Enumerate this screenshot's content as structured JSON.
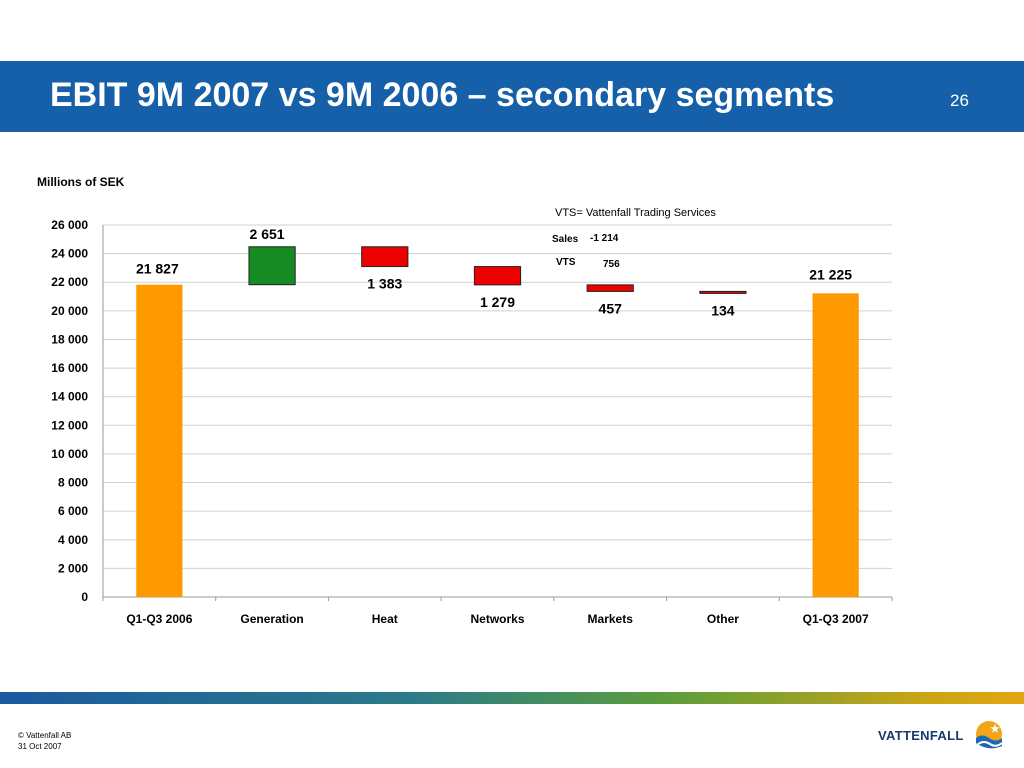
{
  "slide": {
    "title": "EBIT 9M 2007 vs 9M 2006 – secondary segments",
    "page_number": "26",
    "unit_label": "Millions of SEK",
    "copyright": "© Vattenfall AB",
    "date": "31 Oct 2007",
    "logo_text": "VATTENFALL"
  },
  "chart_data": {
    "type": "bar",
    "subtype": "waterfall",
    "categories": [
      "Q1-Q3 2006",
      "Generation",
      "Heat",
      "Networks",
      "Markets",
      "Other",
      "Q1-Q3 2007"
    ],
    "bars": [
      {
        "kind": "total",
        "start": 0,
        "end": 21827,
        "label": "21 827",
        "color": "#ff9900"
      },
      {
        "kind": "increase",
        "start": 21827,
        "end": 24478,
        "label": "2 651",
        "color": "#168a23"
      },
      {
        "kind": "decrease",
        "start": 24478,
        "end": 23095,
        "label": "1 383",
        "color": "#ee0000"
      },
      {
        "kind": "decrease",
        "start": 23095,
        "end": 21816,
        "label": "1 279",
        "color": "#ee0000"
      },
      {
        "kind": "decrease",
        "start": 21816,
        "end": 21359,
        "label": "457",
        "color": "#ee0000"
      },
      {
        "kind": "decrease",
        "start": 21359,
        "end": 21225,
        "label": "134",
        "color": "#ee0000"
      },
      {
        "kind": "total",
        "start": 0,
        "end": 21225,
        "label": "21 225",
        "color": "#ff9900"
      }
    ],
    "ylim": [
      0,
      26000
    ],
    "yticks": [
      "0",
      "2 000",
      "4 000",
      "6 000",
      "8 000",
      "10 000",
      "12 000",
      "14 000",
      "16 000",
      "18 000",
      "20 000",
      "22 000",
      "24 000",
      "26 000"
    ],
    "grid": true,
    "annotation": {
      "note": "VTS= Vattenfall Trading Services",
      "rows": [
        {
          "label": "Sales",
          "value": "-1 214"
        },
        {
          "label": "VTS",
          "value": "756"
        }
      ]
    }
  }
}
